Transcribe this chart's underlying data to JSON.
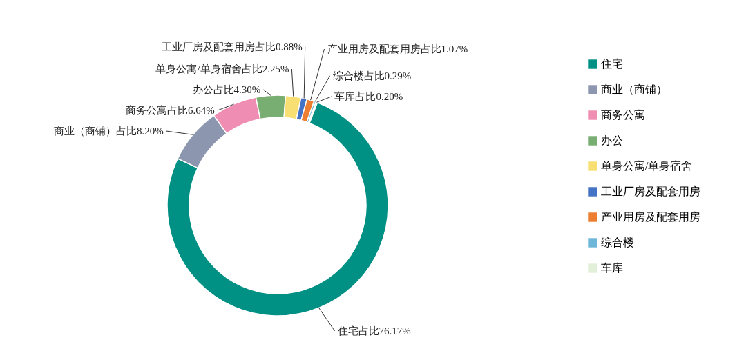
{
  "chart_data": {
    "type": "donut",
    "categories": [
      "住宅",
      "商业（商铺）",
      "商务公寓",
      "办公",
      "单身公寓/单身宿舍",
      "工业厂房及配套用房",
      "产业用房及配套用房",
      "综合楼",
      "车库"
    ],
    "values": [
      76.17,
      8.2,
      6.64,
      4.3,
      2.25,
      0.88,
      1.07,
      0.29,
      0.2
    ],
    "colors": [
      "#009084",
      "#8c96ae",
      "#f08db2",
      "#79ae72",
      "#f7df74",
      "#4472c4",
      "#ed7d31",
      "#6fb7d8",
      "#e2f0d9"
    ],
    "value_labels": [
      "住宅占比76.17%",
      "商业（商铺）占比8.20%",
      "商务公寓占比6.64%",
      "办公占比4.30%",
      "单身公寓/单身宿舍占比2.25%",
      "工业厂房及配套用房占比0.88%",
      "产业用房及配套用房占比1.07%",
      "综合楼占比0.29%",
      "车库占比0.20%"
    ],
    "legend": "right"
  }
}
